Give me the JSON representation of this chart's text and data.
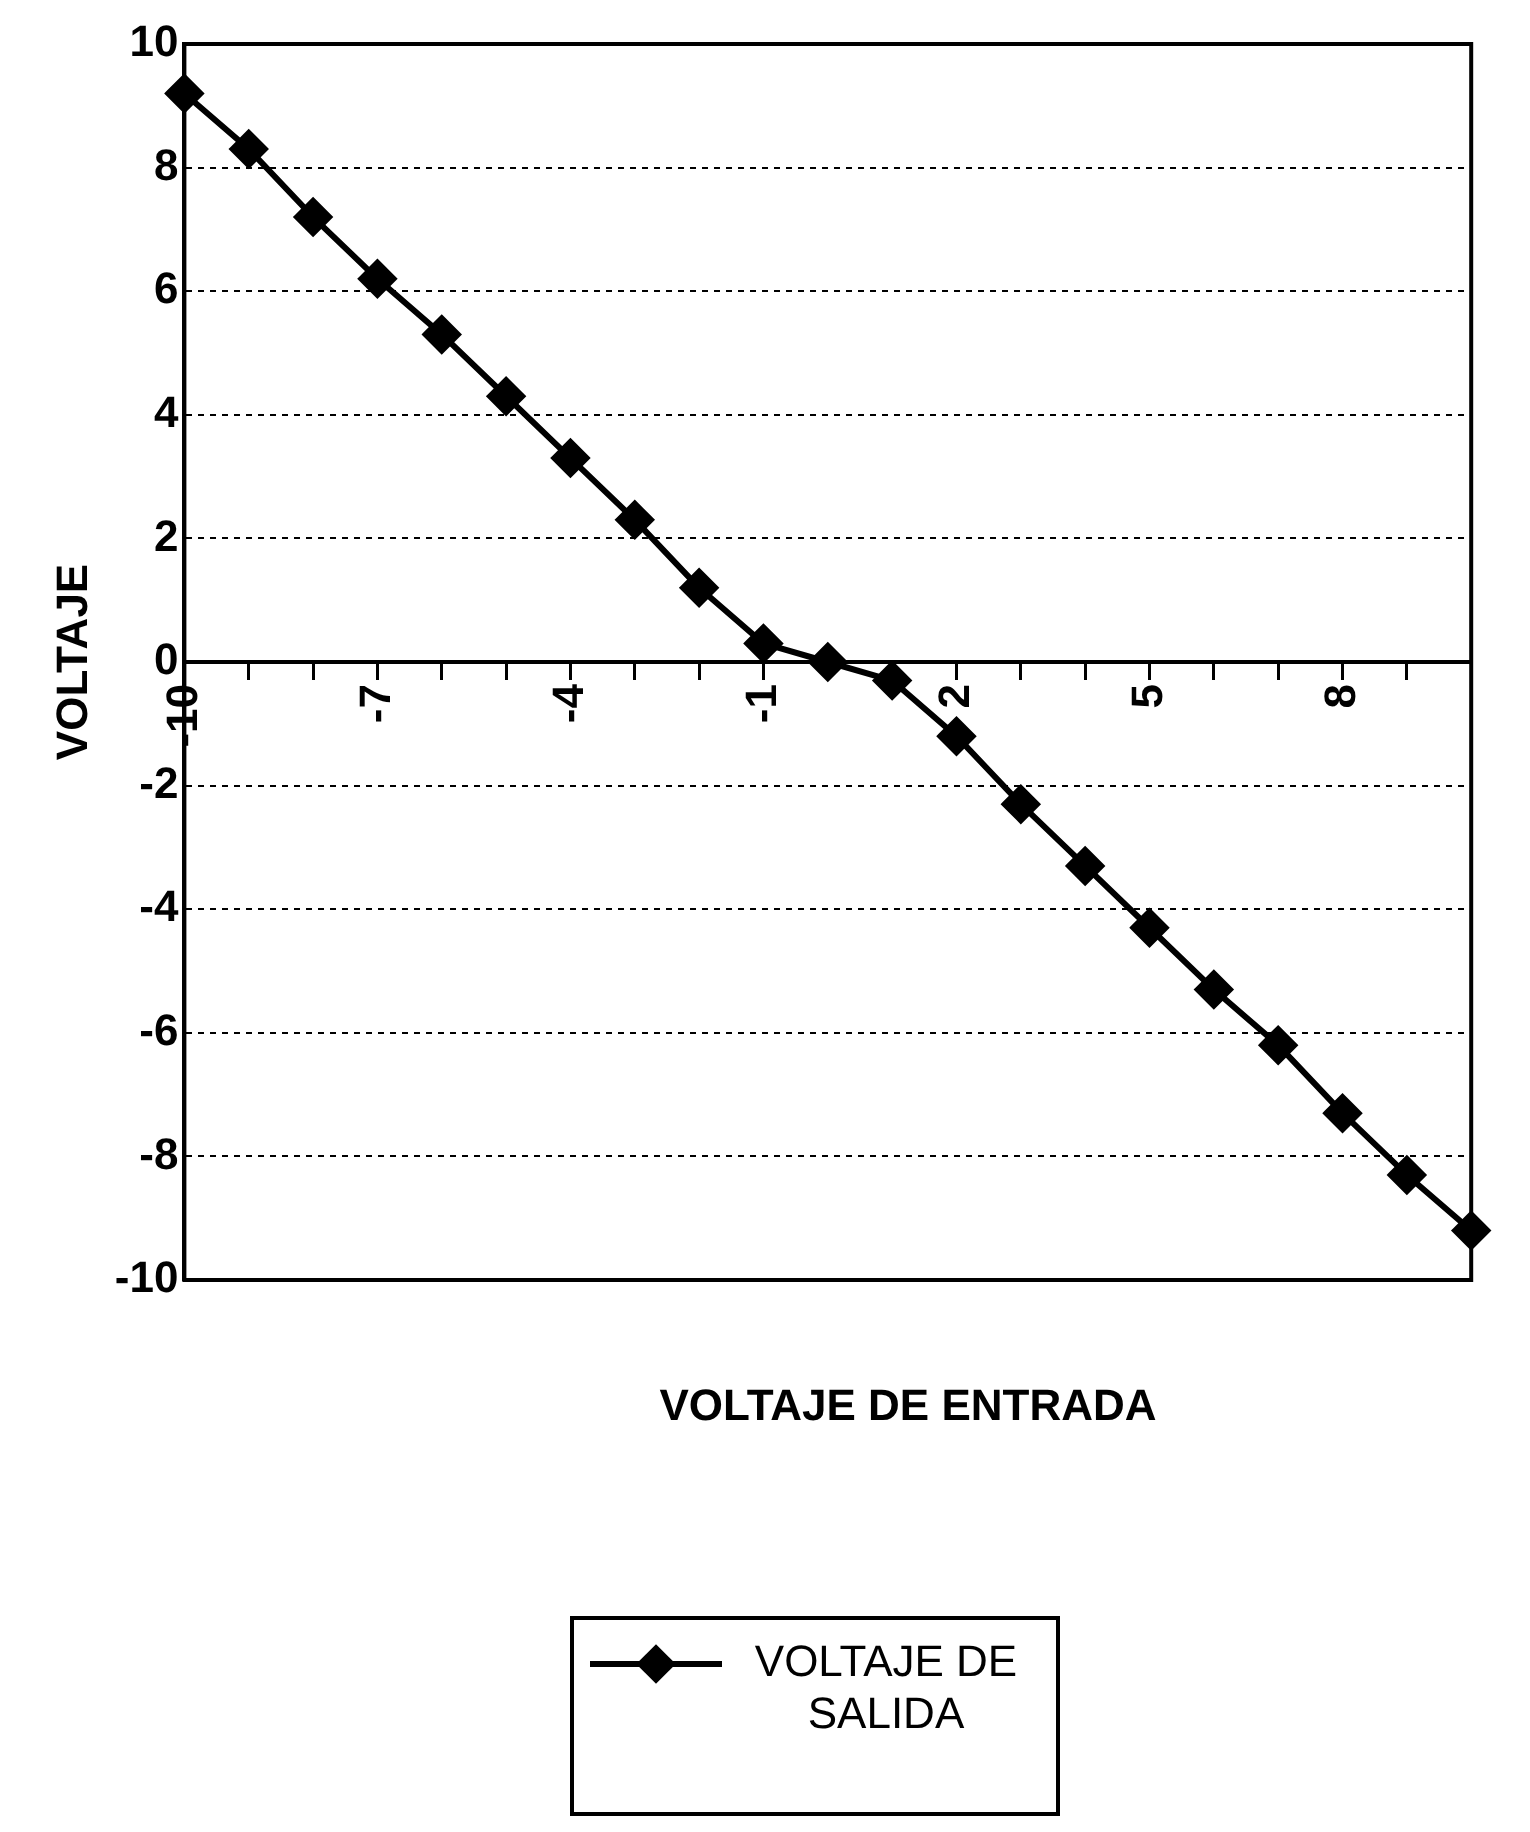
{
  "chart_data": {
    "type": "line",
    "xlabel": "VOLTAJE DE ENTRADA",
    "ylabel": "VOLTAJE",
    "x": [
      -10,
      -9,
      -8,
      -7,
      -6,
      -5,
      -4,
      -3,
      -2,
      -1,
      0,
      1,
      2,
      3,
      4,
      5,
      6,
      7,
      8,
      9,
      10
    ],
    "series": [
      {
        "name": "VOLTAJE DE SALIDA",
        "color": "#000000",
        "values": [
          9.2,
          8.3,
          7.2,
          6.2,
          5.3,
          4.3,
          3.3,
          2.3,
          1.2,
          0.3,
          0,
          -0.3,
          -1.2,
          -2.3,
          -3.3,
          -4.3,
          -5.3,
          -6.2,
          -7.3,
          -8.3,
          -9.2
        ]
      }
    ],
    "xlim": [
      -10,
      10
    ],
    "xticks": [
      -10,
      {
        "value": -9,
        "label": null
      },
      {
        "value": -8,
        "label": null
      },
      -7,
      {
        "value": -6,
        "label": null
      },
      {
        "value": -5,
        "label": null
      },
      -4,
      {
        "value": -3,
        "label": null
      },
      {
        "value": -2,
        "label": null
      },
      -1,
      {
        "value": 0,
        "label": null
      },
      {
        "value": 1,
        "label": null
      },
      2,
      {
        "value": 3,
        "label": null
      },
      {
        "value": 4,
        "label": null
      },
      5,
      {
        "value": 6,
        "label": null
      },
      {
        "value": 7,
        "label": null
      },
      8,
      {
        "value": 9,
        "label": null
      },
      {
        "value": 10,
        "label": null
      }
    ],
    "ylim": [
      -10,
      10
    ],
    "yticks": [
      -10,
      -8,
      -6,
      -4,
      -2,
      0,
      2,
      4,
      6,
      8,
      10
    ],
    "grid": "y",
    "legend": "bottom",
    "marker": "diamond",
    "line_style": "solid"
  }
}
